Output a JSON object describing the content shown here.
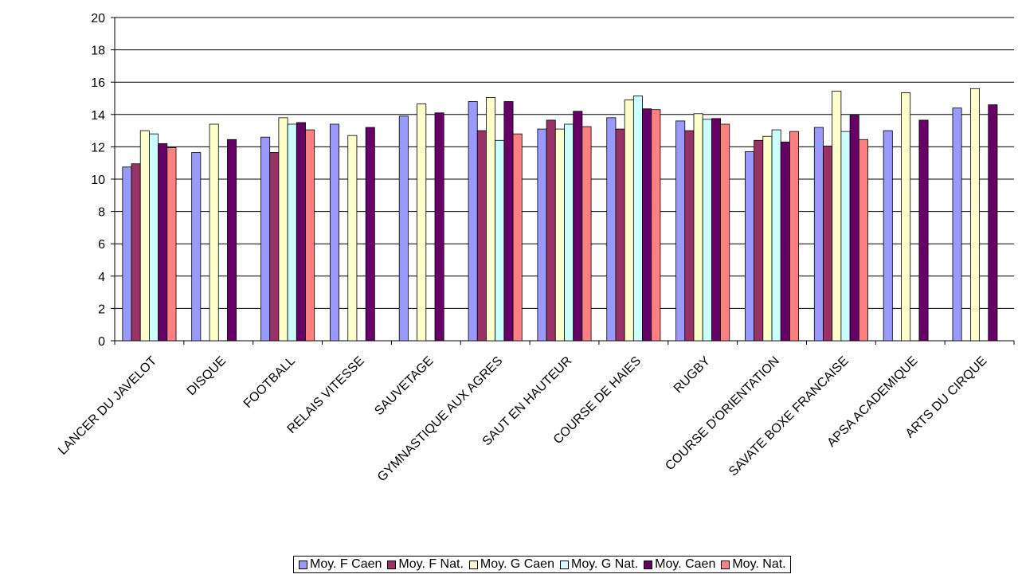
{
  "chart_data": {
    "type": "bar",
    "title": "",
    "xlabel": "",
    "ylabel": "",
    "ylim": [
      0,
      20
    ],
    "yticks": [
      0,
      2,
      4,
      6,
      8,
      10,
      12,
      14,
      16,
      18,
      20
    ],
    "grid": true,
    "legend_position": "bottom",
    "categories": [
      "LANCER DU JAVELOT",
      "DISQUE",
      "FOOTBALL",
      "RELAIS VITESSE",
      "SAUVETAGE",
      "GYMNASTIQUE AUX AGRES",
      "SAUT EN HAUTEUR",
      "COURSE DE HAIES",
      "RUGBY",
      "COURSE D'ORIENTATION",
      "SAVATE BOXE FRANCAISE",
      "APSA ACADEMIQUE",
      "ARTS DU CIRQUE"
    ],
    "series": [
      {
        "name": "Moy. F Caen",
        "color": "#9999ff",
        "values": [
          10.75,
          11.65,
          12.6,
          13.4,
          13.9,
          14.8,
          13.1,
          13.8,
          13.6,
          11.7,
          13.2,
          13.0,
          14.4
        ]
      },
      {
        "name": "Moy. F Nat.",
        "color": "#993366",
        "values": [
          10.95,
          null,
          11.65,
          null,
          null,
          13.0,
          13.65,
          13.1,
          13.0,
          12.4,
          12.05,
          null,
          null
        ]
      },
      {
        "name": "Moy. G Caen",
        "color": "#ffffcc",
        "values": [
          13.0,
          13.4,
          13.8,
          12.7,
          14.65,
          15.05,
          13.1,
          14.9,
          14.05,
          12.65,
          15.45,
          15.35,
          15.6
        ]
      },
      {
        "name": "Moy. G Nat.",
        "color": "#ccffff",
        "values": [
          12.8,
          null,
          13.4,
          null,
          null,
          12.4,
          13.4,
          15.15,
          13.7,
          13.05,
          12.95,
          null,
          null
        ]
      },
      {
        "name": "Moy. Caen",
        "color": "#660066",
        "values": [
          12.2,
          12.45,
          13.5,
          13.2,
          14.1,
          14.8,
          14.2,
          14.35,
          13.75,
          12.3,
          13.95,
          13.65,
          14.6
        ]
      },
      {
        "name": "Moy. Nat.",
        "color": "#ff8080",
        "values": [
          11.95,
          null,
          13.05,
          null,
          null,
          12.8,
          13.25,
          14.3,
          13.4,
          12.95,
          12.45,
          null,
          null
        ]
      }
    ]
  }
}
